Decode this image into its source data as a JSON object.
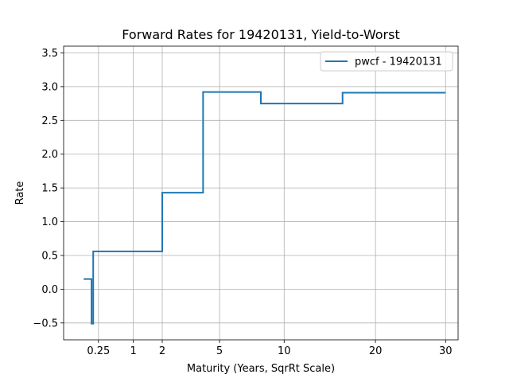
{
  "chart_data": {
    "type": "line",
    "title": "Forward Rates for 19420131, Yield-to-Worst",
    "xlabel": "Maturity (Years, SqrRt Scale)",
    "ylabel": "Rate",
    "x_scale": "sqrt",
    "xlim": [
      0,
      32
    ],
    "ylim": [
      -0.75,
      3.6
    ],
    "x_ticks": [
      0.25,
      1,
      2,
      5,
      10,
      20,
      30
    ],
    "x_tick_labels": [
      "0.25",
      "1",
      "2",
      "5",
      "10",
      "20",
      "30"
    ],
    "y_ticks": [
      -0.5,
      0.0,
      0.5,
      1.0,
      1.5,
      2.0,
      2.5,
      3.0,
      3.5
    ],
    "y_tick_labels": [
      "−0.5",
      "0.0",
      "0.5",
      "1.0",
      "1.5",
      "2.0",
      "2.5",
      "3.0",
      "3.5"
    ],
    "grid": true,
    "legend_position": "top-right",
    "series": [
      {
        "name": "pwcf - 19420131",
        "color": "#1f77b4",
        "step": true,
        "x": [
          0.083,
          0.16,
          0.16,
          0.18,
          0.18,
          0.19,
          0.19,
          2.0,
          2.0,
          4.0,
          4.0,
          8.0,
          8.0,
          16.0,
          16.0,
          30.0
        ],
        "y": [
          0.15,
          0.15,
          -0.51,
          -0.51,
          0.56,
          0.56,
          0.56,
          0.56,
          1.43,
          1.43,
          2.92,
          2.92,
          2.75,
          2.75,
          2.91,
          2.91
        ]
      }
    ]
  }
}
